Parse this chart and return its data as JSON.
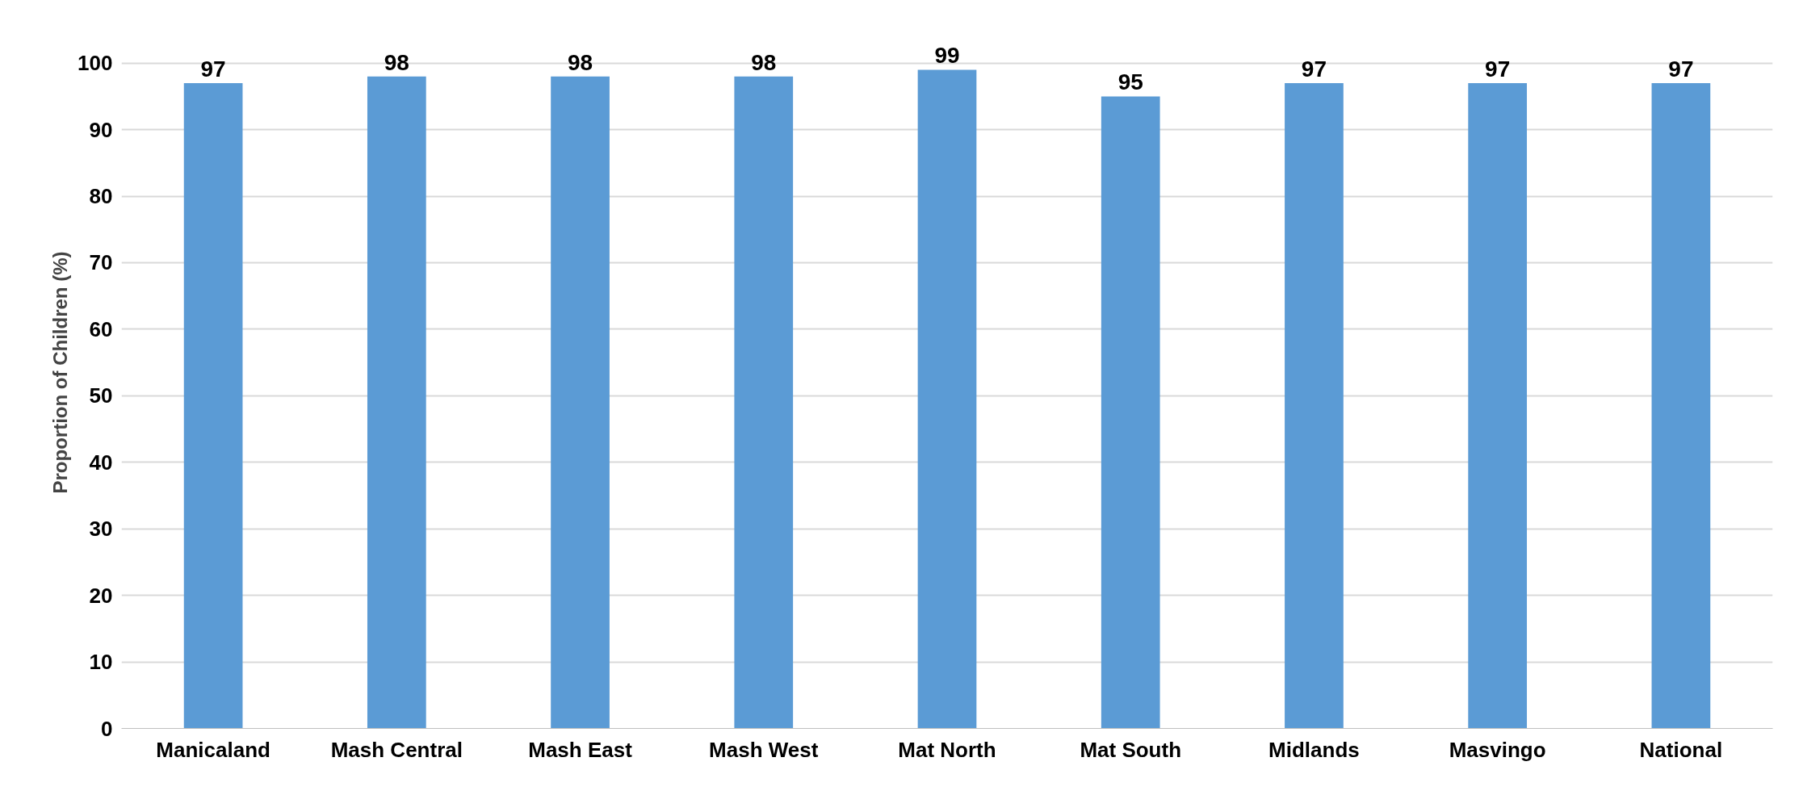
{
  "chart_data": {
    "type": "bar",
    "ylabel": "Proportion of Children (%)",
    "categories": [
      "Manicaland",
      "Mash Central",
      "Mash East",
      "Mash West",
      "Mat North",
      "Mat South",
      "Midlands",
      "Masvingo",
      "National"
    ],
    "values": [
      97,
      98,
      98,
      98,
      99,
      95,
      97,
      97,
      97
    ],
    "color": "#5b9bd5",
    "ylim": [
      0,
      100
    ],
    "yticks": [
      0,
      10,
      20,
      30,
      40,
      50,
      60,
      70,
      80,
      90,
      100
    ],
    "grid": "y",
    "data_labels": true
  }
}
